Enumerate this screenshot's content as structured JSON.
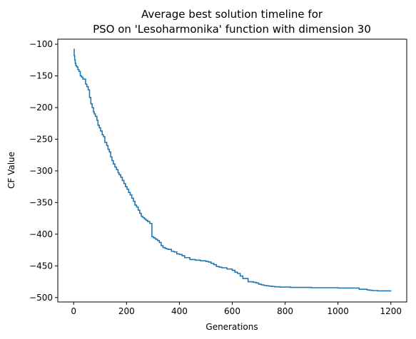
{
  "chart_data": {
    "type": "line",
    "title_lines": [
      "Average best solution timeline for",
      "PSO on 'Lesoharmonika' function with dimension 30"
    ],
    "xlabel": "Generations",
    "ylabel": "CF Value",
    "xlim": [
      -60,
      1260
    ],
    "ylim": [
      -507,
      -92
    ],
    "xticks": [
      0,
      200,
      400,
      600,
      800,
      1000,
      1200
    ],
    "yticks": [
      -100,
      -150,
      -200,
      -250,
      -300,
      -350,
      -400,
      -450,
      -500
    ],
    "xtick_labels": [
      "0",
      "200",
      "400",
      "600",
      "800",
      "1000",
      "1200"
    ],
    "ytick_labels": [
      "−100",
      "−150",
      "−200",
      "−250",
      "−300",
      "−350",
      "−400",
      "−450",
      "−500"
    ],
    "grid": false,
    "series": [
      {
        "color": "#1f77b4",
        "step": true,
        "x": [
          0,
          2,
          4,
          6,
          8,
          12,
          16,
          20,
          25,
          30,
          35,
          45,
          50,
          55,
          60,
          65,
          70,
          75,
          78,
          82,
          88,
          92,
          97,
          102,
          108,
          113,
          118,
          125,
          130,
          135,
          140,
          145,
          150,
          156,
          162,
          168,
          172,
          178,
          184,
          190,
          196,
          202,
          208,
          214,
          220,
          226,
          232,
          238,
          244,
          250,
          256,
          262,
          268,
          274,
          280,
          288,
          296,
          303,
          310,
          317,
          324,
          331,
          338,
          345,
          350,
          355,
          360,
          370,
          380,
          390,
          400,
          410,
          420,
          440,
          460,
          480,
          500,
          510,
          520,
          530,
          540,
          550,
          560,
          580,
          600,
          610,
          620,
          630,
          640,
          660,
          680,
          690,
          700,
          710,
          720,
          730,
          740,
          750,
          760,
          780,
          820,
          900,
          1000,
          1080,
          1110,
          1120,
          1130,
          1150,
          1200
        ],
        "y": [
          -108,
          -118,
          -125,
          -130,
          -134,
          -136,
          -140,
          -143,
          -150,
          -152,
          -155,
          -163,
          -167,
          -172,
          -184,
          -194,
          -200,
          -207,
          -210,
          -214,
          -220,
          -228,
          -232,
          -237,
          -243,
          -246,
          -255,
          -260,
          -266,
          -270,
          -278,
          -284,
          -289,
          -294,
          -298,
          -303,
          -306,
          -310,
          -315,
          -320,
          -325,
          -329,
          -334,
          -338,
          -343,
          -348,
          -354,
          -357,
          -362,
          -367,
          -372,
          -374,
          -376,
          -378,
          -380,
          -383,
          -404,
          -406,
          -408,
          -410,
          -413,
          -418,
          -421,
          -422,
          -423,
          -423.5,
          -424,
          -427,
          -428,
          -431,
          -432,
          -434,
          -437,
          -440,
          -441,
          -442,
          -443,
          -444,
          -446,
          -448,
          -451,
          -452,
          -453,
          -455,
          -457,
          -460,
          -462,
          -466,
          -470,
          -475,
          -476,
          -477,
          -479,
          -480,
          -481,
          -481.5,
          -482,
          -482.5,
          -483,
          -483.5,
          -484,
          -484.5,
          -485,
          -487,
          -488,
          -488.5,
          -489,
          -489.5,
          -490
        ]
      }
    ]
  }
}
